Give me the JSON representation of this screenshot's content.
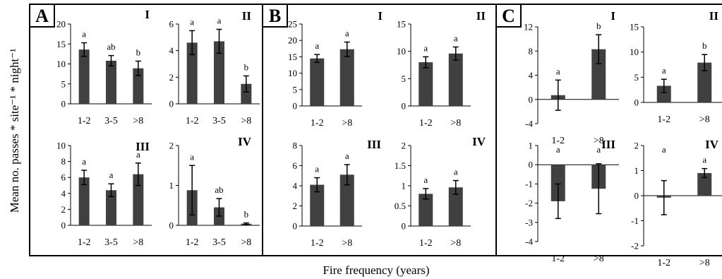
{
  "figure": {
    "ylabel": "Mean no. passes * site⁻¹ * night⁻¹",
    "xlabel": "Fire frequency (years)"
  },
  "colors": {
    "bar": "#404040",
    "axis": "#000000",
    "frame": "#000000"
  },
  "panels": [
    {
      "letter": "A"
    },
    {
      "letter": "B"
    },
    {
      "letter": "C"
    }
  ],
  "chart_data": [
    {
      "type": "bar",
      "panel": "A",
      "title": "I",
      "categories": [
        "1-2",
        "3-5",
        ">8"
      ],
      "values": [
        13.6,
        10.8,
        8.9
      ],
      "errors": [
        1.7,
        1.3,
        1.8
      ],
      "letters": [
        "a",
        "ab",
        "b"
      ],
      "ylim": [
        0,
        20
      ],
      "yticks": [
        0,
        5,
        10,
        15,
        20
      ]
    },
    {
      "type": "bar",
      "panel": "A",
      "title": "II",
      "categories": [
        "1-2",
        "3-5",
        ">8"
      ],
      "values": [
        4.6,
        4.7,
        1.5
      ],
      "errors": [
        0.9,
        0.9,
        0.6
      ],
      "letters": [
        "a",
        "a",
        "b"
      ],
      "ylim": [
        0,
        6
      ],
      "yticks": [
        0,
        2,
        4,
        6
      ]
    },
    {
      "type": "bar",
      "panel": "A",
      "title": "III",
      "categories": [
        "1-2",
        "3-5",
        ">8"
      ],
      "values": [
        6.0,
        4.4,
        6.4
      ],
      "errors": [
        0.9,
        0.8,
        1.4
      ],
      "letters": [
        "a",
        "a",
        "a"
      ],
      "ylim": [
        0,
        10
      ],
      "yticks": [
        0,
        2,
        4,
        6,
        8,
        10
      ]
    },
    {
      "type": "bar",
      "panel": "A",
      "title": "IV",
      "categories": [
        "1-2",
        "3-5",
        ">8"
      ],
      "values": [
        0.88,
        0.45,
        0.04
      ],
      "errors": [
        0.62,
        0.22,
        0.02
      ],
      "letters": [
        "a",
        "ab",
        "b"
      ],
      "ylim": [
        0,
        2
      ],
      "yticks": [
        0,
        1,
        2
      ]
    },
    {
      "type": "bar",
      "panel": "B",
      "title": "I",
      "categories": [
        "1-2",
        ">8"
      ],
      "values": [
        14.5,
        17.3
      ],
      "errors": [
        1.2,
        2.2
      ],
      "letters": [
        "a",
        "a"
      ],
      "ylim": [
        0,
        25
      ],
      "yticks": [
        0,
        5,
        10,
        15,
        20,
        25
      ]
    },
    {
      "type": "bar",
      "panel": "B",
      "title": "II",
      "categories": [
        "1-2",
        ">8"
      ],
      "values": [
        8.0,
        9.6
      ],
      "errors": [
        1.0,
        1.2
      ],
      "letters": [
        "a",
        "a"
      ],
      "ylim": [
        0,
        15
      ],
      "yticks": [
        0,
        5,
        10,
        15
      ]
    },
    {
      "type": "bar",
      "panel": "B",
      "title": "III",
      "categories": [
        "1-2",
        ">8"
      ],
      "values": [
        4.1,
        5.1
      ],
      "errors": [
        0.7,
        1.0
      ],
      "letters": [
        "a",
        "a"
      ],
      "ylim": [
        0,
        8
      ],
      "yticks": [
        0,
        2,
        4,
        6,
        8
      ]
    },
    {
      "type": "bar",
      "panel": "B",
      "title": "IV",
      "categories": [
        "1-2",
        ">8"
      ],
      "values": [
        0.8,
        0.96
      ],
      "errors": [
        0.13,
        0.17
      ],
      "letters": [
        "a",
        "a"
      ],
      "ylim": [
        0,
        2
      ],
      "yticks": [
        0,
        0.5,
        1,
        1.5,
        2
      ]
    },
    {
      "type": "bar",
      "panel": "C",
      "title": "I",
      "categories": [
        "1-2",
        ">8"
      ],
      "values": [
        0.7,
        8.3
      ],
      "errors": [
        2.5,
        2.4
      ],
      "letters": [
        "a",
        "b"
      ],
      "ylim": [
        -4,
        12
      ],
      "yticks": [
        -4,
        0,
        4,
        8,
        12
      ]
    },
    {
      "type": "bar",
      "panel": "C",
      "title": "II",
      "categories": [
        "1-2",
        ">8"
      ],
      "values": [
        3.3,
        7.9
      ],
      "errors": [
        1.3,
        1.6
      ],
      "letters": [
        "a",
        "b"
      ],
      "ylim": [
        0,
        15
      ],
      "yticks": [
        0,
        5,
        10,
        15
      ]
    },
    {
      "type": "bar",
      "panel": "C",
      "title": "III",
      "categories": [
        "1-2",
        ">8"
      ],
      "values": [
        -1.9,
        -1.25
      ],
      "errors": [
        0.9,
        1.3
      ],
      "letters": [
        "a",
        "a"
      ],
      "ylim": [
        -4,
        1
      ],
      "yticks": [
        -4,
        -3,
        -2,
        -1,
        0,
        1
      ]
    },
    {
      "type": "bar",
      "panel": "C",
      "title": "IV",
      "categories": [
        "1-2",
        ">8"
      ],
      "values": [
        -0.08,
        0.9
      ],
      "errors": [
        0.68,
        0.18
      ],
      "letters": [
        "a",
        "a"
      ],
      "ylim": [
        -2,
        2
      ],
      "yticks": [
        -2,
        -1,
        0,
        1,
        2
      ]
    }
  ]
}
